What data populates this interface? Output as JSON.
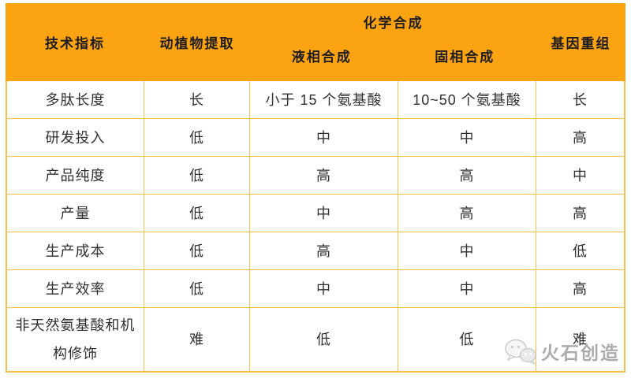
{
  "colors": {
    "header_bg": "#FBA311",
    "grid_border": "#FCBE44",
    "body_text": "#303030",
    "watermark_gray": "#8A8A8A"
  },
  "table": {
    "header": {
      "col_indicator": "技术指标",
      "col_extraction": "动植物提取",
      "chem_group": "化学合成",
      "chem_liquid": "液相合成",
      "chem_solid": "固相合成",
      "col_gene": "基因重组"
    },
    "rows": [
      {
        "label": "多肽长度",
        "values": [
          "长",
          "小于 15 个氨基酸",
          "10~50 个氨基酸",
          "长"
        ]
      },
      {
        "label": "研发投入",
        "values": [
          "低",
          "中",
          "中",
          "高"
        ]
      },
      {
        "label": "产品纯度",
        "values": [
          "低",
          "高",
          "高",
          "中"
        ]
      },
      {
        "label": "产量",
        "values": [
          "低",
          "中",
          "高",
          "高"
        ]
      },
      {
        "label": "生产成本",
        "values": [
          "低",
          "高",
          "中",
          "低"
        ]
      },
      {
        "label": "生产效率",
        "values": [
          "低",
          "中",
          "中",
          "高"
        ]
      },
      {
        "label": "非天然氨基酸和机构修饰",
        "values": [
          "难",
          "低",
          "低",
          "难"
        ]
      }
    ]
  },
  "watermark": {
    "text": "火石创造",
    "icon": "chat-bubbles-icon"
  }
}
